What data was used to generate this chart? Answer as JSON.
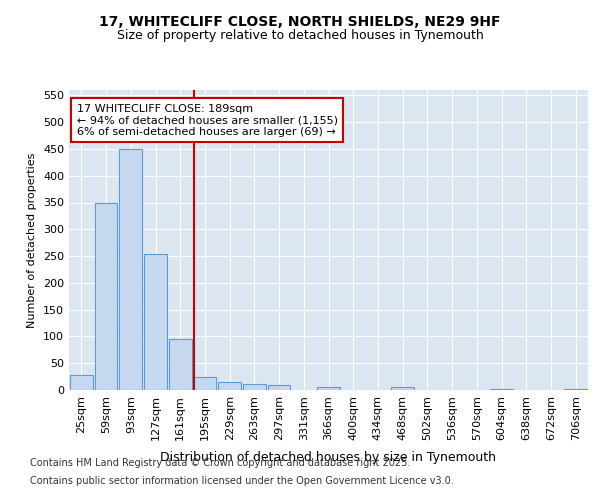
{
  "title_line1": "17, WHITECLIFF CLOSE, NORTH SHIELDS, NE29 9HF",
  "title_line2": "Size of property relative to detached houses in Tynemouth",
  "xlabel": "Distribution of detached houses by size in Tynemouth",
  "ylabel": "Number of detached properties",
  "categories": [
    "25sqm",
    "59sqm",
    "93sqm",
    "127sqm",
    "161sqm",
    "195sqm",
    "229sqm",
    "263sqm",
    "297sqm",
    "331sqm",
    "366sqm",
    "400sqm",
    "434sqm",
    "468sqm",
    "502sqm",
    "536sqm",
    "570sqm",
    "604sqm",
    "638sqm",
    "672sqm",
    "706sqm"
  ],
  "values": [
    28,
    350,
    450,
    253,
    95,
    25,
    15,
    12,
    9,
    0,
    5,
    0,
    0,
    5,
    0,
    0,
    0,
    2,
    0,
    0,
    2
  ],
  "bar_color": "#c5d8f0",
  "bar_edge_color": "#5b9bd5",
  "ylim": [
    0,
    560
  ],
  "yticks": [
    0,
    50,
    100,
    150,
    200,
    250,
    300,
    350,
    400,
    450,
    500,
    550
  ],
  "vline_x_index": 5,
  "vline_color": "#cc0000",
  "annotation_box_text": "17 WHITECLIFF CLOSE: 189sqm\n← 94% of detached houses are smaller (1,155)\n6% of semi-detached houses are larger (69) →",
  "annotation_box_color": "#cc0000",
  "annotation_box_bg": "#ffffff",
  "figure_bg_color": "#ffffff",
  "plot_bg_color": "#dce6f1",
  "footer_line1": "Contains HM Land Registry data © Crown copyright and database right 2025.",
  "footer_line2": "Contains public sector information licensed under the Open Government Licence v3.0.",
  "grid_color": "#ffffff",
  "title_fontsize": 10,
  "subtitle_fontsize": 9,
  "tick_fontsize": 8,
  "xlabel_fontsize": 9,
  "ylabel_fontsize": 8,
  "footer_fontsize": 7,
  "annotation_fontsize": 8
}
